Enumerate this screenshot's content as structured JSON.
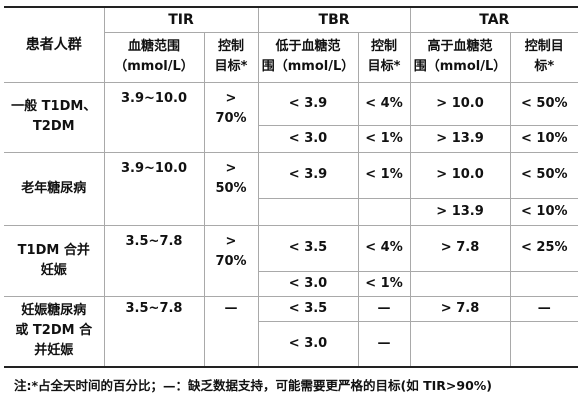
{
  "header": {
    "group_label": "患者人群",
    "tir": "TIR",
    "tbr": "TBR",
    "tar": "TAR",
    "tir_range": [
      "血糖范围",
      "（mmol/L）"
    ],
    "tir_target": [
      "控制",
      "目标*"
    ],
    "tbr_range": [
      "低于血糖范",
      "围（mmol/L）"
    ],
    "tbr_target": [
      "控制",
      "目标*"
    ],
    "tar_range": [
      "高于血糖范",
      "围（mmol/L）"
    ],
    "tar_target": [
      "控制目",
      "标*"
    ]
  },
  "rows": [
    {
      "group": [
        "一般 T1DM、",
        "T2DM"
      ],
      "tir_range": "3.9~10.0",
      "tir_target": [
        ">",
        "70%"
      ],
      "sub": [
        {
          "tbr_range": "< 3.9",
          "tbr_target": "< 4%",
          "tar_range": "> 10.0",
          "tar_target": "< 50%"
        },
        {
          "tbr_range": "< 3.0",
          "tbr_target": "< 1%",
          "tar_range": "> 13.9",
          "tar_target": "< 10%"
        }
      ]
    },
    {
      "group": [
        "老年糖尿病"
      ],
      "tir_range": "3.9~10.0",
      "tir_target": [
        ">",
        "50%"
      ],
      "sub": [
        {
          "tbr_range": "< 3.9",
          "tbr_target": "< 1%",
          "tar_range": "> 10.0",
          "tar_target": "< 50%"
        },
        {
          "tbr_range": "",
          "tbr_target": "",
          "tar_range": "> 13.9",
          "tar_target": "< 10%"
        }
      ]
    },
    {
      "group": [
        "T1DM 合并",
        "妊娠"
      ],
      "tir_range": "3.5~7.8",
      "tir_target": [
        ">",
        "70%"
      ],
      "sub": [
        {
          "tbr_range": "< 3.5",
          "tbr_target": "< 4%",
          "tar_range": "> 7.8",
          "tar_target": "< 25%"
        },
        {
          "tbr_range": "< 3.0",
          "tbr_target": "< 1%",
          "tar_range": "",
          "tar_target": ""
        }
      ]
    },
    {
      "group": [
        "妊娠糖尿病",
        "或 T2DM 合",
        "并妊娠"
      ],
      "tir_range": "3.5~7.8",
      "tir_target": [
        "—"
      ],
      "sub": [
        {
          "tbr_range": "< 3.5",
          "tbr_target": "—",
          "tar_range": "> 7.8",
          "tar_target": "—"
        },
        {
          "tbr_range": "< 3.0",
          "tbr_target": "—",
          "tar_range": "",
          "tar_target": ""
        }
      ]
    }
  ],
  "note": "注:*占全天时间的百分比；—：缺乏数据支持，可能需要更严格的目标(如 TIR>90%)"
}
